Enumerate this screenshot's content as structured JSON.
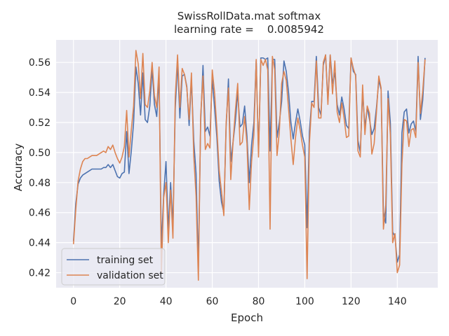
{
  "chart_data": {
    "type": "line",
    "title": "SwissRollData.mat softmax",
    "subtitle": "learning rate =    0.0085942",
    "xlabel": "Epoch",
    "ylabel": "Accuracy",
    "xlim": [
      -7.5,
      157.5
    ],
    "ylim": [
      0.41,
      0.575
    ],
    "xticks": [
      0,
      20,
      40,
      60,
      80,
      100,
      120,
      140
    ],
    "yticks": [
      0.42,
      0.44,
      0.46,
      0.48,
      0.5,
      0.52,
      0.54,
      0.56
    ],
    "ytick_labels": [
      "0.42",
      "0.44",
      "0.46",
      "0.48",
      "0.50",
      "0.52",
      "0.54",
      "0.56"
    ],
    "grid": true,
    "legend_position": "lower-left",
    "background": "#eaeaf2",
    "series": [
      {
        "name": "training set",
        "color": "#4c72b0",
        "values": [
          0.441,
          0.466,
          0.479,
          0.483,
          0.485,
          0.486,
          0.487,
          0.488,
          0.489,
          0.489,
          0.489,
          0.489,
          0.489,
          0.49,
          0.49,
          0.492,
          0.49,
          0.492,
          0.488,
          0.484,
          0.483,
          0.486,
          0.487,
          0.514,
          0.486,
          0.501,
          0.52,
          0.557,
          0.546,
          0.525,
          0.553,
          0.522,
          0.52,
          0.531,
          0.556,
          0.532,
          0.524,
          0.552,
          0.437,
          0.472,
          0.494,
          0.448,
          0.48,
          0.451,
          0.529,
          0.56,
          0.523,
          0.551,
          0.552,
          0.544,
          0.518,
          0.549,
          0.508,
          0.486,
          0.424,
          0.521,
          0.558,
          0.514,
          0.517,
          0.511,
          0.549,
          0.53,
          0.51,
          0.481,
          0.467,
          0.46,
          0.517,
          0.549,
          0.494,
          0.507,
          0.521,
          0.54,
          0.517,
          0.519,
          0.531,
          0.511,
          0.48,
          0.505,
          0.52,
          0.561,
          0.5,
          0.563,
          0.563,
          0.562,
          0.563,
          0.501,
          0.562,
          0.562,
          0.51,
          0.52,
          0.534,
          0.561,
          0.554,
          0.54,
          0.52,
          0.509,
          0.52,
          0.529,
          0.521,
          0.511,
          0.505,
          0.45,
          0.514,
          0.534,
          0.534,
          0.564,
          0.53,
          0.525,
          0.558,
          0.565,
          0.534,
          0.565,
          0.546,
          0.553,
          0.532,
          0.525,
          0.537,
          0.529,
          0.518,
          0.516,
          0.563,
          0.554,
          0.552,
          0.508,
          0.5,
          0.54,
          0.517,
          0.53,
          0.522,
          0.512,
          0.516,
          0.53,
          0.548,
          0.542,
          0.46,
          0.453,
          0.541,
          0.52,
          0.447,
          0.444,
          0.427,
          0.432,
          0.513,
          0.527,
          0.529,
          0.513,
          0.519,
          0.521,
          0.514,
          0.564,
          0.522,
          0.535,
          0.563
        ]
      },
      {
        "name": "validation set",
        "color": "#dd8452",
        "values": [
          0.439,
          0.462,
          0.481,
          0.489,
          0.494,
          0.496,
          0.496,
          0.497,
          0.498,
          0.498,
          0.498,
          0.499,
          0.5,
          0.501,
          0.5,
          0.504,
          0.502,
          0.505,
          0.5,
          0.496,
          0.493,
          0.497,
          0.504,
          0.528,
          0.497,
          0.515,
          0.531,
          0.568,
          0.559,
          0.536,
          0.566,
          0.532,
          0.53,
          0.541,
          0.56,
          0.538,
          0.53,
          0.557,
          0.42,
          0.47,
          0.48,
          0.44,
          0.475,
          0.443,
          0.537,
          0.565,
          0.53,
          0.556,
          0.552,
          0.543,
          0.522,
          0.553,
          0.498,
          0.471,
          0.415,
          0.525,
          0.551,
          0.502,
          0.506,
          0.503,
          0.555,
          0.54,
          0.516,
          0.488,
          0.474,
          0.458,
          0.52,
          0.543,
          0.482,
          0.507,
          0.528,
          0.546,
          0.505,
          0.507,
          0.524,
          0.506,
          0.462,
          0.494,
          0.512,
          0.562,
          0.497,
          0.562,
          0.558,
          0.562,
          0.555,
          0.449,
          0.564,
          0.555,
          0.498,
          0.514,
          0.546,
          0.554,
          0.548,
          0.529,
          0.509,
          0.492,
          0.51,
          0.523,
          0.515,
          0.505,
          0.497,
          0.416,
          0.506,
          0.533,
          0.53,
          0.561,
          0.523,
          0.523,
          0.56,
          0.565,
          0.532,
          0.565,
          0.539,
          0.561,
          0.527,
          0.52,
          0.533,
          0.523,
          0.51,
          0.511,
          0.563,
          0.556,
          0.551,
          0.501,
          0.497,
          0.545,
          0.512,
          0.531,
          0.526,
          0.499,
          0.506,
          0.527,
          0.551,
          0.543,
          0.449,
          0.465,
          0.536,
          0.512,
          0.44,
          0.446,
          0.42,
          0.425,
          0.492,
          0.522,
          0.521,
          0.504,
          0.515,
          0.516,
          0.51,
          0.56,
          0.526,
          0.541,
          0.562
        ]
      }
    ]
  }
}
